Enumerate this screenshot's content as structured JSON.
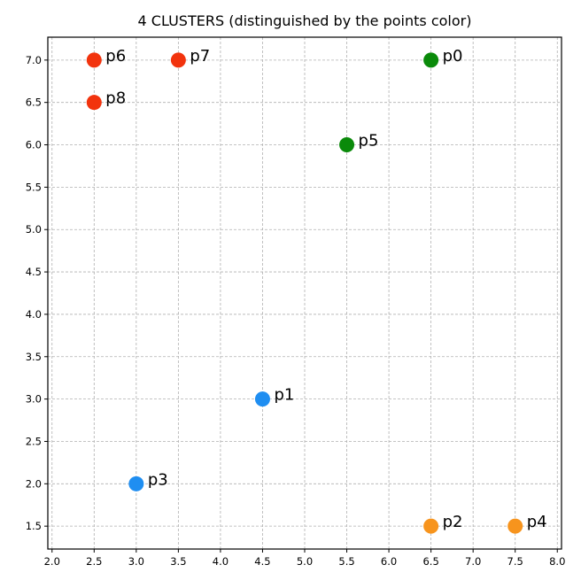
{
  "chart_data": {
    "type": "scatter",
    "title": "4 CLUSTERS (distinguished by the points color)",
    "xlabel": "",
    "ylabel": "",
    "xlim": [
      1.95,
      8.05
    ],
    "ylim": [
      1.23,
      7.27
    ],
    "grid": true,
    "x_ticks": [
      "2.0",
      "2.5",
      "3.0",
      "3.5",
      "4.0",
      "4.5",
      "5.0",
      "5.5",
      "6.0",
      "6.5",
      "7.0",
      "7.5",
      "8.0"
    ],
    "y_ticks": [
      "1.5",
      "2.0",
      "2.5",
      "3.0",
      "3.5",
      "4.0",
      "4.5",
      "5.0",
      "5.5",
      "6.0",
      "6.5",
      "7.0"
    ],
    "cluster_colors": {
      "green": "#0a8a0a",
      "blue": "#1f8ef1",
      "orange": "#f7941d",
      "red": "#f2330d"
    },
    "points": [
      {
        "label": "p0",
        "x": 6.5,
        "y": 7.0,
        "cluster": "green"
      },
      {
        "label": "p1",
        "x": 4.5,
        "y": 3.0,
        "cluster": "blue"
      },
      {
        "label": "p2",
        "x": 6.5,
        "y": 1.5,
        "cluster": "orange"
      },
      {
        "label": "p3",
        "x": 3.0,
        "y": 2.0,
        "cluster": "blue"
      },
      {
        "label": "p4",
        "x": 7.5,
        "y": 1.5,
        "cluster": "orange"
      },
      {
        "label": "p5",
        "x": 5.5,
        "y": 6.0,
        "cluster": "green"
      },
      {
        "label": "p6",
        "x": 2.5,
        "y": 7.0,
        "cluster": "red"
      },
      {
        "label": "p7",
        "x": 3.5,
        "y": 7.0,
        "cluster": "red"
      },
      {
        "label": "p8",
        "x": 2.5,
        "y": 6.5,
        "cluster": "red"
      }
    ]
  }
}
